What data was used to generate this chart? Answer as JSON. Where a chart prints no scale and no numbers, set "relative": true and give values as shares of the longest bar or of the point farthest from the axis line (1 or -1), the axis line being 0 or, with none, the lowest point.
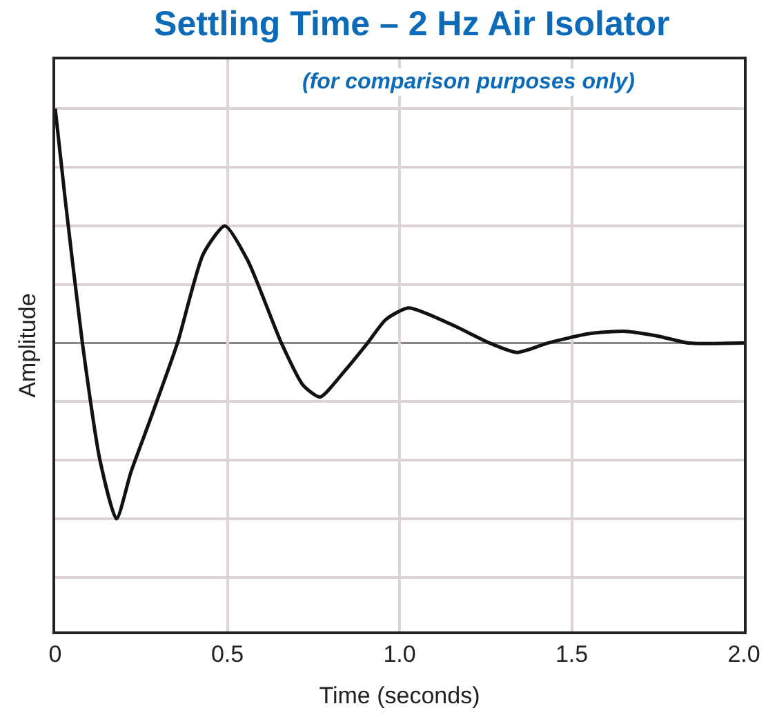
{
  "chart_data": {
    "type": "line",
    "title": "Settling Time – 2 Hz Air Isolator",
    "subtitle": "(for comparison purposes only)",
    "xlabel": "Time (seconds)",
    "ylabel": "Amplitude",
    "relative": true,
    "tick_labels": "x",
    "grid": true,
    "marker": "none",
    "line_style": "solid",
    "xlim": [
      0,
      2.0
    ],
    "xticks": [
      {
        "value": 0,
        "label": "0"
      },
      {
        "value": 0.5,
        "label": "0.5"
      },
      {
        "value": 1,
        "label": "1.0"
      },
      {
        "value": 1.5,
        "label": "1.5"
      },
      {
        "value": 2,
        "label": "2.0"
      }
    ],
    "x": [
      0,
      0.03,
      0.079,
      0.13,
      0.178,
      0.22,
      0.27,
      0.355,
      0.43,
      0.493,
      0.56,
      0.657,
      0.72,
      0.769,
      0.84,
      0.907,
      0.96,
      1.026,
      1.15,
      1.262,
      1.341,
      1.43,
      1.55,
      1.657,
      1.75,
      1.84,
      2.0
    ],
    "series": [
      {
        "color": "#111111",
        "values": [
          1.0,
          0.6,
          0,
          -0.5,
          -0.75,
          -0.55,
          -0.35,
          0,
          0.38,
          0.5,
          0.35,
          0,
          -0.18,
          -0.23,
          -0.12,
          0,
          0.1,
          0.15,
          0.08,
          0,
          -0.04,
          0,
          0.04,
          0.05,
          0.03,
          0,
          0
        ]
      }
    ],
    "ref_lines": [
      {
        "axis": "y",
        "value": 0,
        "color": "#8a8a8a"
      }
    ]
  }
}
